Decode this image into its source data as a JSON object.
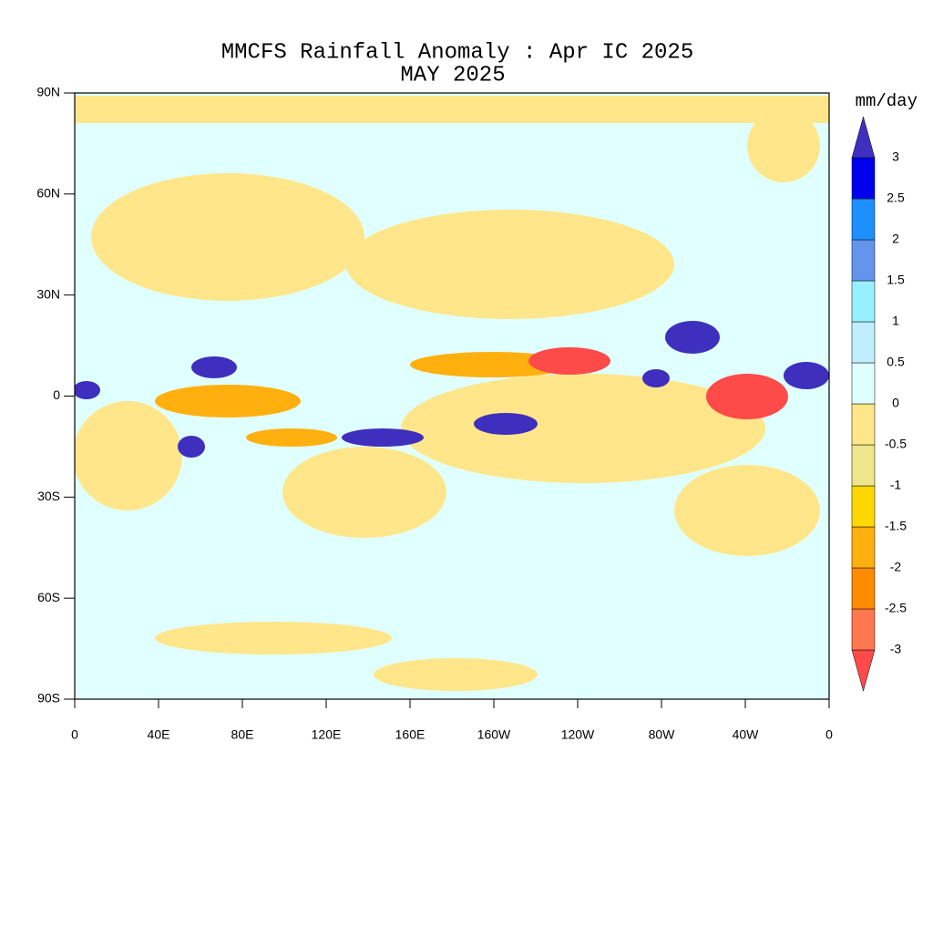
{
  "chart_data": {
    "type": "contour-map",
    "title": "MMCFS Rainfall Anomaly : Apr IC 2025",
    "subtitle": "MAY 2025",
    "xlim": [
      0,
      360
    ],
    "ylim": [
      -90,
      90
    ],
    "xticks": [
      0,
      {
        "value": 40,
        "label": "40E"
      },
      {
        "value": 80,
        "label": "80E"
      },
      {
        "value": 120,
        "label": "120E"
      },
      {
        "value": 160,
        "label": "160E"
      },
      {
        "value": 200,
        "label": "160W"
      },
      {
        "value": 240,
        "label": "120W"
      },
      {
        "value": 280,
        "label": "80W"
      },
      {
        "value": 320,
        "label": "40W"
      },
      {
        "value": 360,
        "label": "0"
      }
    ],
    "yticks": [
      {
        "value": -90,
        "label": "90S"
      },
      {
        "value": -60,
        "label": "60S"
      },
      {
        "value": -30,
        "label": "30S"
      },
      0,
      {
        "value": 30,
        "label": "30N"
      },
      {
        "value": 60,
        "label": "60N"
      },
      {
        "value": 90,
        "label": "90N"
      }
    ],
    "colorbar": {
      "title": "mm/day",
      "levels": [
        -3,
        -2.5,
        -2,
        -1.5,
        -1,
        -0.5,
        0,
        0.5,
        1,
        1.5,
        2,
        2.5,
        3
      ],
      "colors": [
        "#ff4a4a",
        "#ff7850",
        "#ff8c00",
        "#ffb00f",
        "#ffd700",
        "#eee68a",
        "#ffe68a",
        "#e0ffff",
        "#bfefff",
        "#97f0ff",
        "#6495ed",
        "#1e8fff",
        "#0000ee",
        "#3f2fbf"
      ]
    }
  }
}
